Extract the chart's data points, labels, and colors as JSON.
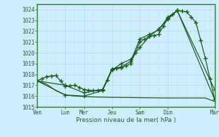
{
  "title": "",
  "xlabel": "Pression niveau de la mer( hPa )",
  "bg_color": "#cceeff",
  "grid_color": "#b0d8d8",
  "line_color": "#1a5c1a",
  "x_labels": [
    "Ven",
    "Lun",
    "Mer",
    "Jeu",
    "Sam",
    "Dim",
    "Mar"
  ],
  "ylim": [
    1015.0,
    1024.5
  ],
  "yticks": [
    1015,
    1016,
    1017,
    1018,
    1019,
    1020,
    1021,
    1022,
    1023,
    1024
  ],
  "xtick_positions": [
    0,
    3,
    5,
    8,
    11,
    14,
    19
  ],
  "total_x": 19,
  "line1": {
    "x": [
      0,
      0.5,
      1,
      1.5,
      2,
      2.5,
      3,
      3.5,
      4,
      4.5,
      5,
      5.5,
      6,
      6.5,
      7,
      7.5,
      8,
      8.5,
      9,
      9.5,
      10,
      10.5,
      11,
      11.5,
      12,
      12.5,
      13,
      13.5,
      14,
      14.5,
      15,
      15.5,
      16,
      16.5,
      17,
      17.5,
      18,
      18.5,
      19
    ],
    "y": [
      1017.4,
      1017.6,
      1017.8,
      1017.85,
      1017.9,
      1017.4,
      1016.9,
      1016.95,
      1017.0,
      1016.8,
      1016.6,
      1016.55,
      1016.5,
      1016.55,
      1016.6,
      1017.5,
      1018.5,
      1018.55,
      1018.6,
      1018.8,
      1019.0,
      1020.0,
      1021.0,
      1021.25,
      1021.5,
      1021.6,
      1021.7,
      1022.45,
      1023.2,
      1023.55,
      1023.9,
      1023.85,
      1023.8,
      1023.3,
      1022.8,
      1021.15,
      1019.5,
      1017.6,
      1015.7
    ]
  },
  "line2": {
    "x": [
      0,
      3,
      5,
      7,
      8,
      9,
      10,
      11,
      12,
      13,
      14,
      15,
      19
    ],
    "y": [
      1017.4,
      1017.0,
      1016.3,
      1016.6,
      1018.5,
      1018.7,
      1019.2,
      1021.3,
      1021.7,
      1022.1,
      1023.3,
      1023.9,
      1015.7
    ]
  },
  "line3": {
    "x": [
      0,
      3,
      5,
      7,
      8,
      9,
      10,
      11,
      12,
      13,
      14,
      15,
      19
    ],
    "y": [
      1017.4,
      1016.1,
      1016.0,
      1016.5,
      1018.4,
      1019.0,
      1019.4,
      1020.5,
      1021.5,
      1022.2,
      1023.1,
      1023.9,
      1016.6
    ]
  },
  "line_flat": {
    "x": [
      0,
      1,
      2,
      3,
      4,
      5,
      6,
      7,
      8,
      9,
      10,
      11,
      12,
      13,
      14,
      15,
      16,
      17,
      18,
      19
    ],
    "y": [
      1017.4,
      1017.1,
      1016.5,
      1016.1,
      1016.0,
      1015.95,
      1015.92,
      1015.9,
      1015.88,
      1015.87,
      1015.86,
      1015.85,
      1015.84,
      1015.83,
      1015.82,
      1015.82,
      1015.82,
      1015.82,
      1015.82,
      1015.5
    ]
  }
}
